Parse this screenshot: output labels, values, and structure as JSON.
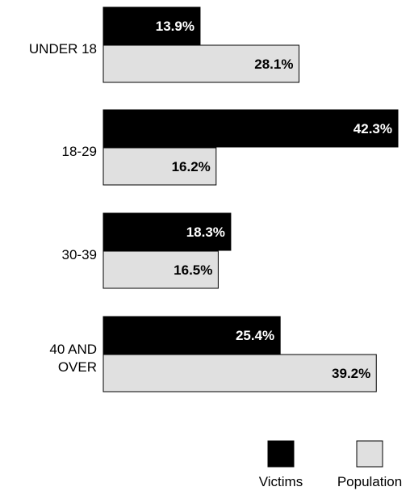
{
  "chart_data": {
    "type": "bar",
    "orientation": "horizontal",
    "categories": [
      "UNDER 18",
      "18-29",
      "30-39",
      "40 AND OVER"
    ],
    "category_label_lines": [
      [
        "UNDER 18"
      ],
      [
        "18-29"
      ],
      [
        "30-39"
      ],
      [
        "40 AND",
        "OVER"
      ]
    ],
    "series": [
      {
        "name": "Victims",
        "values": [
          13.9,
          42.3,
          18.3,
          25.4
        ],
        "labels": [
          "13.9%",
          "42.3%",
          "18.3%",
          "25.4%"
        ],
        "color": "#000000",
        "label_color": "#ffffff"
      },
      {
        "name": "Population",
        "values": [
          28.1,
          16.2,
          16.5,
          39.2
        ],
        "labels": [
          "28.1%",
          "16.2%",
          "16.5%",
          "39.2%"
        ],
        "color": "#e0e0e0",
        "label_color": "#000000"
      }
    ],
    "xlim": [
      0,
      42.3
    ],
    "grid": false,
    "legend_position": "bottom-right"
  }
}
